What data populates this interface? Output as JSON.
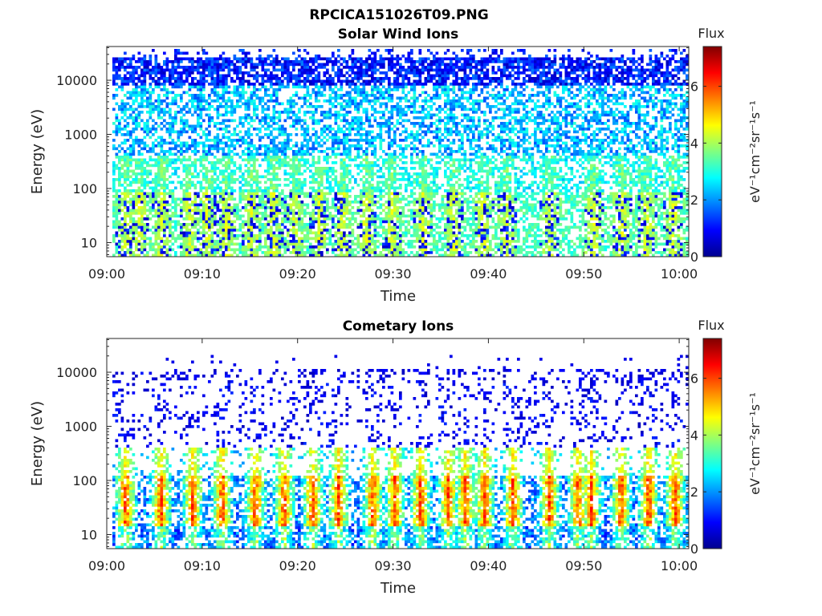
{
  "figure_title": "RPCICA151026T09.PNG",
  "colors": {
    "colormap": [
      "#00008f",
      "#0000ff",
      "#0080ff",
      "#00ffff",
      "#80ff80",
      "#ffff00",
      "#ff8000",
      "#ff0000",
      "#800000"
    ]
  },
  "chart_data": [
    {
      "type": "heatmap",
      "title": "Solar Wind Ions",
      "xlabel": "Time",
      "ylabel": "Energy (eV)",
      "x_tick_labels": [
        "09:00",
        "09:10",
        "09:20",
        "09:30",
        "09:40",
        "09:50",
        "10:00"
      ],
      "x_ticks_minutes": [
        0,
        10,
        20,
        30,
        40,
        50,
        60
      ],
      "xlim_minutes": [
        0,
        61
      ],
      "y_scale": "log",
      "y_tick_labels": [
        "10",
        "100",
        "1000",
        "10000"
      ],
      "y_ticks": [
        10,
        100,
        1000,
        10000
      ],
      "ylim": [
        5.5,
        42000
      ],
      "colorbar": {
        "label": "Flux",
        "unit": "eV⁻¹cm⁻²sr⁻¹s⁻¹",
        "tick_labels": [
          "0",
          "2",
          "4",
          "6"
        ],
        "ticks": [
          0,
          2,
          4,
          6
        ],
        "range": [
          0,
          7.4
        ]
      },
      "pattern": "solar-wind",
      "bursts_minutes": [
        2.0,
        3.5,
        5.8,
        8.7,
        10.5,
        12.5,
        15.2,
        17.5,
        19.7,
        22.3,
        24.7,
        27.3,
        29.9,
        33.2,
        36.4,
        39.5,
        41.9,
        46.5,
        51.0,
        54.0,
        56.6,
        59.4
      ]
    },
    {
      "type": "heatmap",
      "title": "Cometary Ions",
      "xlabel": "Time",
      "ylabel": "Energy (eV)",
      "x_tick_labels": [
        "09:00",
        "09:10",
        "09:20",
        "09:30",
        "09:40",
        "09:50",
        "10:00"
      ],
      "x_ticks_minutes": [
        0,
        10,
        20,
        30,
        40,
        50,
        60
      ],
      "xlim_minutes": [
        0,
        61
      ],
      "y_scale": "log",
      "y_tick_labels": [
        "10",
        "100",
        "1000",
        "10000"
      ],
      "y_ticks": [
        10,
        100,
        1000,
        10000
      ],
      "ylim": [
        5.5,
        42000
      ],
      "colorbar": {
        "label": "Flux",
        "unit": "eV⁻¹cm⁻²sr⁻¹s⁻¹",
        "tick_labels": [
          "0",
          "2",
          "4",
          "6"
        ],
        "ticks": [
          0,
          2,
          4,
          6
        ],
        "range": [
          0,
          7.4
        ]
      },
      "pattern": "cometary",
      "bursts_minutes": [
        2.0,
        5.7,
        9.0,
        12.1,
        15.6,
        18.6,
        21.6,
        24.3,
        27.9,
        30.2,
        32.9,
        35.8,
        37.6,
        39.6,
        42.6,
        46.4,
        49.4,
        50.8,
        53.9,
        56.8,
        59.6
      ]
    }
  ]
}
